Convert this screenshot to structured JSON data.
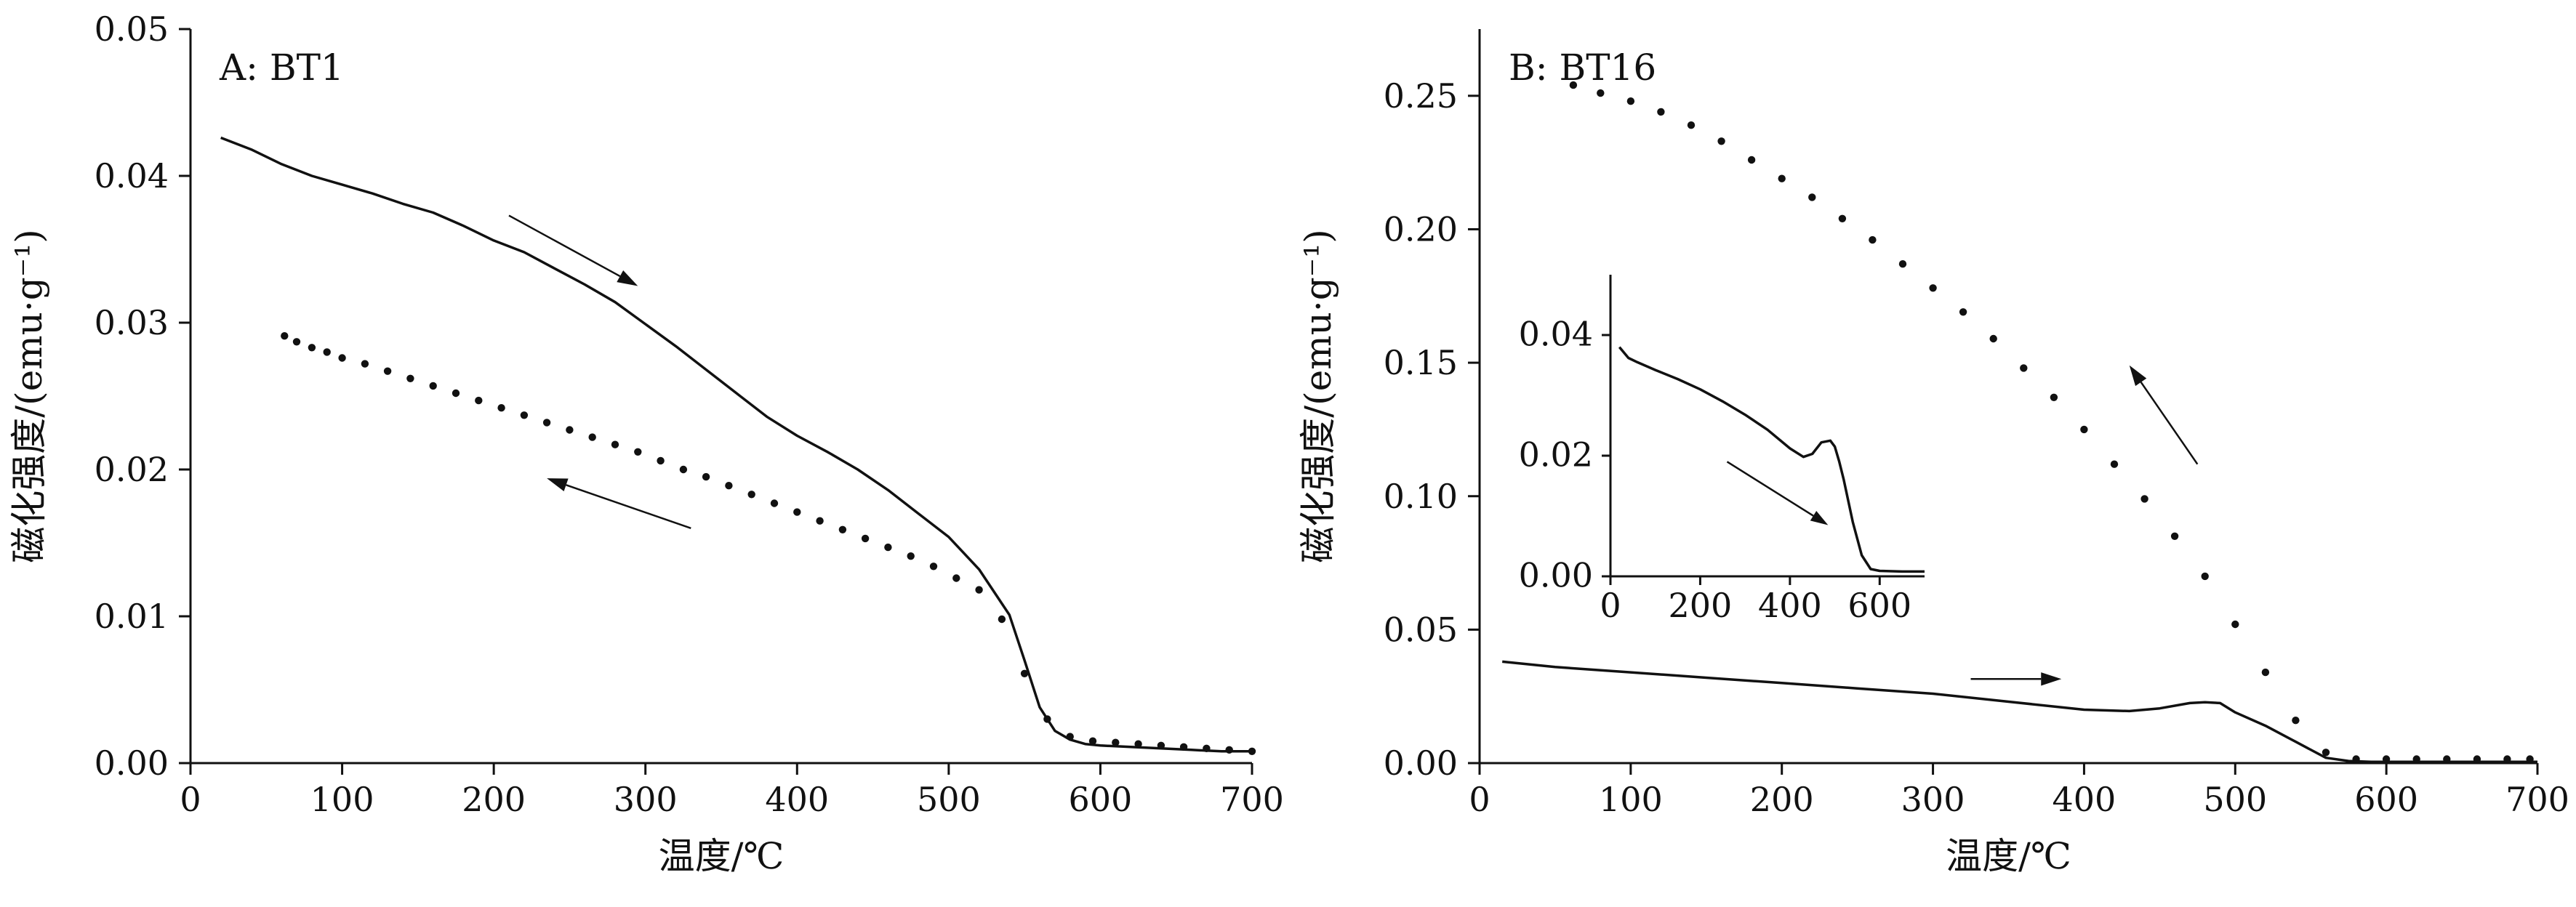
{
  "chart_data": [
    {
      "type": "line",
      "title": "A: BT1",
      "xlabel": "温度/℃",
      "ylabel": "磁化强度/(emu·g⁻¹)",
      "xlim": [
        0,
        700
      ],
      "ylim": [
        0,
        0.05
      ],
      "xticks": [
        "0",
        "100",
        "200",
        "300",
        "400",
        "500",
        "600",
        "700"
      ],
      "yticks": [
        "0.00",
        "0.01",
        "0.02",
        "0.03",
        "0.04",
        "0.05"
      ],
      "series": [
        {
          "style": "solid",
          "direction": "heating",
          "x": [
            20,
            40,
            60,
            80,
            100,
            120,
            140,
            160,
            180,
            200,
            220,
            240,
            260,
            280,
            300,
            320,
            340,
            360,
            380,
            400,
            420,
            440,
            460,
            480,
            500,
            520,
            540,
            550,
            560,
            570,
            580,
            590,
            600,
            620,
            640,
            660,
            680,
            700
          ],
          "y": [
            0.0426,
            0.0418,
            0.0408,
            0.04,
            0.0394,
            0.0388,
            0.0381,
            0.0375,
            0.0366,
            0.0356,
            0.0348,
            0.0337,
            0.0326,
            0.0314,
            0.0299,
            0.0284,
            0.0268,
            0.0252,
            0.0236,
            0.0223,
            0.0212,
            0.02,
            0.0186,
            0.017,
            0.0154,
            0.0132,
            0.0101,
            0.007,
            0.0038,
            0.0022,
            0.0016,
            0.0013,
            0.0012,
            0.0011,
            0.001,
            0.0009,
            0.0008,
            0.0008
          ]
        },
        {
          "style": "dotted",
          "direction": "cooling",
          "x": [
            62,
            70,
            80,
            90,
            100,
            115,
            130,
            145,
            160,
            175,
            190,
            205,
            220,
            235,
            250,
            265,
            280,
            295,
            310,
            325,
            340,
            355,
            370,
            385,
            400,
            415,
            430,
            445,
            460,
            475,
            490,
            505,
            520,
            535,
            550,
            565,
            580,
            595,
            610,
            625,
            640,
            655,
            670,
            685,
            700
          ],
          "y": [
            0.0291,
            0.0287,
            0.0283,
            0.028,
            0.0276,
            0.0272,
            0.0267,
            0.0262,
            0.0257,
            0.0252,
            0.0247,
            0.0242,
            0.0237,
            0.0232,
            0.0227,
            0.0222,
            0.0217,
            0.0212,
            0.0206,
            0.02,
            0.0195,
            0.0189,
            0.0183,
            0.0177,
            0.0171,
            0.0165,
            0.0159,
            0.0153,
            0.0147,
            0.0141,
            0.0134,
            0.0126,
            0.0118,
            0.0098,
            0.0061,
            0.003,
            0.0018,
            0.0015,
            0.0014,
            0.0013,
            0.0012,
            0.0011,
            0.001,
            0.0009,
            0.0008
          ]
        }
      ],
      "annotations": [
        {
          "type": "arrow",
          "from": [
            210,
            0.0373
          ],
          "to": [
            295,
            0.0325
          ],
          "series": "heating"
        },
        {
          "type": "arrow",
          "from": [
            330,
            0.016
          ],
          "to": [
            235,
            0.0194
          ],
          "series": "cooling"
        }
      ]
    },
    {
      "type": "line",
      "title": "B: BT16",
      "xlabel": "温度/℃",
      "ylabel": "磁化强度/(emu·g⁻¹)",
      "xlim": [
        0,
        700
      ],
      "ylim": [
        0,
        0.275
      ],
      "xticks": [
        "0",
        "100",
        "200",
        "300",
        "400",
        "500",
        "600",
        "700"
      ],
      "yticks": [
        "0.00",
        "0.05",
        "0.10",
        "0.15",
        "0.20",
        "0.25"
      ],
      "series": [
        {
          "style": "solid",
          "direction": "heating",
          "x": [
            15,
            50,
            100,
            150,
            200,
            250,
            300,
            350,
            400,
            430,
            450,
            470,
            480,
            490,
            500,
            520,
            540,
            560,
            575,
            590,
            610,
            640,
            670,
            700
          ],
          "y": [
            0.038,
            0.036,
            0.034,
            0.032,
            0.03,
            0.028,
            0.026,
            0.023,
            0.02,
            0.0195,
            0.0205,
            0.0225,
            0.0228,
            0.0225,
            0.019,
            0.014,
            0.008,
            0.002,
            0.0008,
            0.0005,
            0.0005,
            0.0005,
            0.0005,
            0.0005
          ]
        },
        {
          "style": "dotted",
          "direction": "cooling",
          "x": [
            62,
            80,
            100,
            120,
            140,
            160,
            180,
            200,
            220,
            240,
            260,
            280,
            300,
            320,
            340,
            360,
            380,
            400,
            420,
            440,
            460,
            480,
            500,
            520,
            540,
            560,
            580,
            600,
            620,
            640,
            660,
            680,
            695
          ],
          "y": [
            0.254,
            0.251,
            0.248,
            0.244,
            0.239,
            0.233,
            0.226,
            0.219,
            0.212,
            0.204,
            0.196,
            0.187,
            0.178,
            0.169,
            0.159,
            0.148,
            0.137,
            0.125,
            0.112,
            0.099,
            0.085,
            0.07,
            0.052,
            0.034,
            0.016,
            0.004,
            0.0015,
            0.0015,
            0.0015,
            0.0015,
            0.0015,
            0.0015,
            0.0015
          ]
        }
      ],
      "annotations": [
        {
          "type": "arrow",
          "from": [
            325,
            0.0315
          ],
          "to": [
            385,
            0.0315
          ],
          "series": "heating"
        },
        {
          "type": "arrow",
          "from": [
            475,
            0.112
          ],
          "to": [
            430,
            0.149
          ],
          "series": "cooling"
        }
      ],
      "inset": {
        "xlim": [
          0,
          700
        ],
        "ylim": [
          0,
          0.05
        ],
        "xticks": [
          "0",
          "200",
          "400",
          "600"
        ],
        "yticks": [
          "0.00",
          "0.02",
          "0.04"
        ],
        "series": [
          {
            "style": "solid",
            "direction": "heating",
            "x": [
              20,
              40,
              60,
              100,
              150,
              200,
              250,
              300,
              350,
              400,
              430,
              450,
              470,
              490,
              500,
              510,
              520,
              530,
              540,
              560,
              580,
              600,
              650,
              700
            ],
            "y": [
              0.038,
              0.0362,
              0.0355,
              0.0342,
              0.0327,
              0.031,
              0.029,
              0.0268,
              0.0243,
              0.0212,
              0.0198,
              0.0203,
              0.0222,
              0.0225,
              0.0215,
              0.019,
              0.016,
              0.0125,
              0.009,
              0.0035,
              0.0012,
              0.0009,
              0.0008,
              0.0008
            ]
          }
        ],
        "annotations": [
          {
            "type": "arrow",
            "from": [
              260,
              0.019
            ],
            "to": [
              485,
              0.0085
            ]
          }
        ]
      }
    }
  ]
}
